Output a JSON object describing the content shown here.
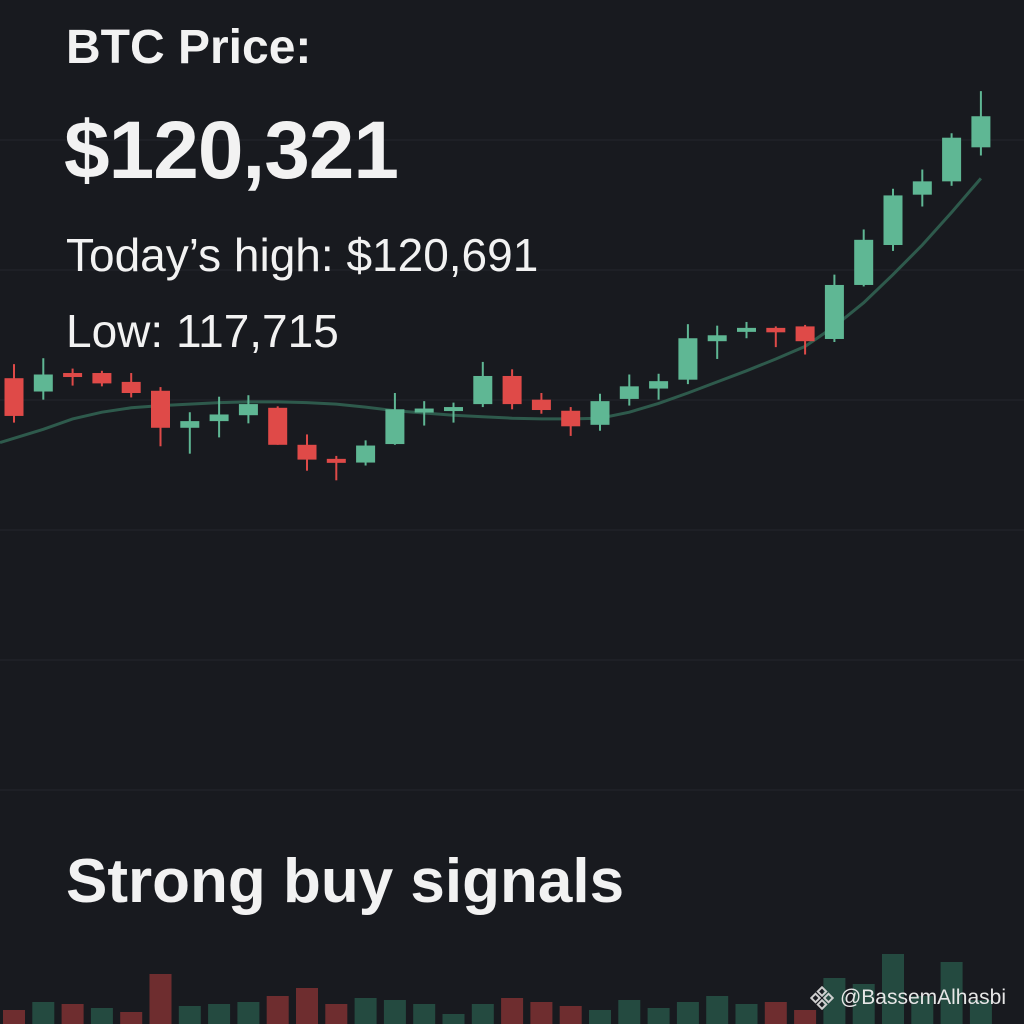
{
  "header": {
    "title": "BTC Price:",
    "price": "$120,321",
    "high_text": "Today’s high: $120,691",
    "low_text": "Low: 117,715"
  },
  "signal_text": "Strong buy signals",
  "watermark": {
    "icon": "binance-logo-icon",
    "handle": "@BassemAlhasbi"
  },
  "colors": {
    "background": "#181a1f",
    "grid": "#23262d",
    "up": "#5fb794",
    "down": "#df4a48",
    "ma": "#2e5a4c",
    "volume_up": "#244a40",
    "volume_down": "#6e2d2f",
    "text": "#f2f2f2"
  },
  "chart_data": {
    "type": "candlestick",
    "candles": [
      {
        "o": 57.0,
        "h": 58.9,
        "l": 51.0,
        "c": 51.9
      },
      {
        "o": 55.2,
        "h": 59.7,
        "l": 54.1,
        "c": 57.5
      },
      {
        "o": 57.7,
        "h": 58.3,
        "l": 56.0,
        "c": 57.5
      },
      {
        "o": 57.7,
        "h": 58.0,
        "l": 55.9,
        "c": 56.3
      },
      {
        "o": 56.5,
        "h": 57.7,
        "l": 54.4,
        "c": 55.0
      },
      {
        "o": 55.3,
        "h": 55.8,
        "l": 47.8,
        "c": 50.3
      },
      {
        "o": 50.3,
        "h": 52.4,
        "l": 46.8,
        "c": 51.2
      },
      {
        "o": 51.2,
        "h": 54.5,
        "l": 49.0,
        "c": 52.1
      },
      {
        "o": 52.0,
        "h": 54.7,
        "l": 50.9,
        "c": 53.5
      },
      {
        "o": 53.0,
        "h": 53.2,
        "l": 48.0,
        "c": 48.0
      },
      {
        "o": 48.0,
        "h": 49.4,
        "l": 44.5,
        "c": 46.0
      },
      {
        "o": 46.1,
        "h": 46.5,
        "l": 43.2,
        "c": 45.6
      },
      {
        "o": 45.6,
        "h": 48.6,
        "l": 45.2,
        "c": 47.9
      },
      {
        "o": 48.1,
        "h": 55.0,
        "l": 48.0,
        "c": 52.8
      },
      {
        "o": 52.8,
        "h": 53.9,
        "l": 50.6,
        "c": 52.9
      },
      {
        "o": 52.6,
        "h": 53.7,
        "l": 51.0,
        "c": 53.1
      },
      {
        "o": 53.5,
        "h": 59.2,
        "l": 53.1,
        "c": 57.3
      },
      {
        "o": 57.3,
        "h": 58.2,
        "l": 52.8,
        "c": 53.5
      },
      {
        "o": 54.1,
        "h": 55.0,
        "l": 52.2,
        "c": 52.7
      },
      {
        "o": 52.6,
        "h": 53.1,
        "l": 49.2,
        "c": 50.5
      },
      {
        "o": 50.7,
        "h": 54.9,
        "l": 49.9,
        "c": 53.9
      },
      {
        "o": 54.2,
        "h": 57.5,
        "l": 53.3,
        "c": 55.9
      },
      {
        "o": 55.6,
        "h": 57.6,
        "l": 54.1,
        "c": 56.6
      },
      {
        "o": 56.8,
        "h": 64.3,
        "l": 56.2,
        "c": 62.4
      },
      {
        "o": 62.0,
        "h": 64.1,
        "l": 59.6,
        "c": 62.8
      },
      {
        "o": 63.4,
        "h": 64.6,
        "l": 62.4,
        "c": 63.8
      },
      {
        "o": 63.8,
        "h": 64.0,
        "l": 61.2,
        "c": 63.2
      },
      {
        "o": 64.0,
        "h": 64.2,
        "l": 60.2,
        "c": 62.0
      },
      {
        "o": 62.3,
        "h": 71.0,
        "l": 61.9,
        "c": 69.6
      },
      {
        "o": 69.6,
        "h": 77.1,
        "l": 69.4,
        "c": 75.7
      },
      {
        "o": 75.0,
        "h": 82.6,
        "l": 74.2,
        "c": 81.7
      },
      {
        "o": 81.8,
        "h": 85.2,
        "l": 80.2,
        "c": 83.6
      },
      {
        "o": 83.6,
        "h": 90.1,
        "l": 83.0,
        "c": 89.5
      },
      {
        "o": 88.2,
        "h": 95.8,
        "l": 87.1,
        "c": 92.4
      }
    ],
    "moving_average": [
      48.3,
      50.1,
      51.5,
      52.4,
      53.0,
      53.3,
      53.5,
      53.7,
      53.8,
      53.8,
      53.7,
      53.5,
      53.1,
      52.6,
      52.3,
      52.0,
      51.8,
      51.6,
      51.5,
      51.5,
      51.6,
      52.4,
      53.6,
      55.0,
      56.5,
      58.0,
      59.6,
      61.3,
      64.0,
      67.2,
      71.0,
      75.0,
      79.4,
      84.0
    ],
    "volume": [
      {
        "v": 14,
        "dir": "down"
      },
      {
        "v": 22,
        "dir": "up"
      },
      {
        "v": 20,
        "dir": "down"
      },
      {
        "v": 16,
        "dir": "up"
      },
      {
        "v": 12,
        "dir": "down"
      },
      {
        "v": 50,
        "dir": "down"
      },
      {
        "v": 18,
        "dir": "up"
      },
      {
        "v": 20,
        "dir": "up"
      },
      {
        "v": 22,
        "dir": "up"
      },
      {
        "v": 28,
        "dir": "down"
      },
      {
        "v": 36,
        "dir": "down"
      },
      {
        "v": 20,
        "dir": "down"
      },
      {
        "v": 26,
        "dir": "up"
      },
      {
        "v": 24,
        "dir": "up"
      },
      {
        "v": 20,
        "dir": "up"
      },
      {
        "v": 10,
        "dir": "up"
      },
      {
        "v": 20,
        "dir": "up"
      },
      {
        "v": 26,
        "dir": "down"
      },
      {
        "v": 22,
        "dir": "down"
      },
      {
        "v": 18,
        "dir": "down"
      },
      {
        "v": 14,
        "dir": "up"
      },
      {
        "v": 24,
        "dir": "up"
      },
      {
        "v": 16,
        "dir": "up"
      },
      {
        "v": 22,
        "dir": "up"
      },
      {
        "v": 28,
        "dir": "up"
      },
      {
        "v": 20,
        "dir": "up"
      },
      {
        "v": 22,
        "dir": "down"
      },
      {
        "v": 14,
        "dir": "down"
      },
      {
        "v": 46,
        "dir": "up"
      },
      {
        "v": 40,
        "dir": "up"
      },
      {
        "v": 70,
        "dir": "up"
      },
      {
        "v": 28,
        "dir": "up"
      },
      {
        "v": 62,
        "dir": "up"
      },
      {
        "v": 24,
        "dir": "up"
      }
    ],
    "grid": true
  }
}
